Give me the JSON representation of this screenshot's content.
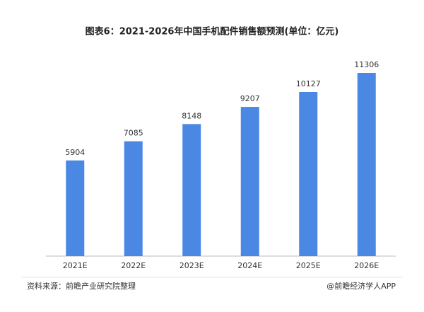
{
  "chart_data": {
    "type": "bar",
    "title": "图表6：2021-2026年中国手机配件销售额预测(单位：亿元)",
    "categories": [
      "2021E",
      "2022E",
      "2023E",
      "2024E",
      "2025E",
      "2026E"
    ],
    "values": [
      5904,
      7085,
      8148,
      9207,
      10127,
      11306
    ],
    "color": "#4a88e3"
  },
  "footer": {
    "source": "资料来源：前瞻产业研究院整理",
    "credit": "@前瞻经济学人APP"
  }
}
